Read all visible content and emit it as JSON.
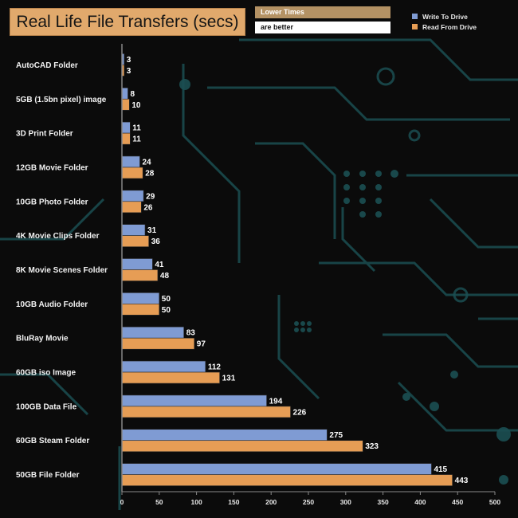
{
  "header": {
    "title": "Real Life File Transfers (secs)",
    "note_line1": "Lower Times",
    "note_line2": "are better"
  },
  "legend": {
    "write_label": "Write To  Drive",
    "read_label": "Read From  Drive"
  },
  "colors": {
    "write": "#7f9bd3",
    "read": "#e69d55",
    "axis": "#888888",
    "title_bg": "#e1a96c",
    "circuit": "#1b4f52"
  },
  "chart_data": {
    "type": "bar",
    "orientation": "horizontal",
    "title": "Real Life File Transfers (secs)",
    "categories": [
      "AutoCAD Folder",
      "5GB (1.5bn pixel) image",
      "3D Print Folder",
      "12GB Movie Folder",
      "10GB Photo Folder",
      "4K Movie Clips Folder",
      "8K Movie Scenes Folder",
      "10GB Audio Folder",
      "BluRay Movie",
      "60GB iso Image",
      "100GB Data File",
      "60GB Steam Folder",
      "50GB File Folder"
    ],
    "series": [
      {
        "name": "Write To  Drive",
        "values": [
          3,
          8,
          11,
          24,
          29,
          31,
          41,
          50,
          83,
          112,
          194,
          275,
          415
        ]
      },
      {
        "name": "Read From  Drive",
        "values": [
          3,
          10,
          11,
          28,
          26,
          36,
          48,
          50,
          97,
          131,
          226,
          323,
          443
        ]
      }
    ],
    "xlim": [
      0,
      500
    ],
    "xticks": [
      0,
      50,
      100,
      150,
      200,
      250,
      300,
      350,
      400,
      450,
      500
    ],
    "xlabel": "",
    "ylabel": "",
    "grid": false,
    "legend_position": "top-right"
  }
}
